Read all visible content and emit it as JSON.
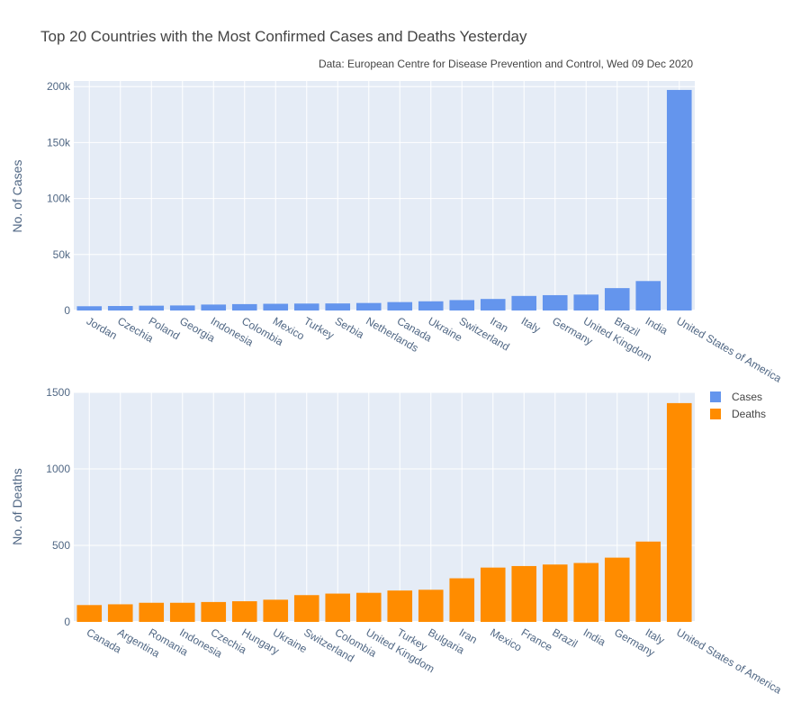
{
  "chart_data": [
    {
      "type": "bar",
      "title": "Top 20 Countries with the Most Confirmed Cases and Deaths Yesterday",
      "subtitle": "Data: European Centre for Disease Prevention and Control, Wed 09 Dec 2020",
      "ylabel": "No. of Cases",
      "ylim": [
        0,
        205000
      ],
      "yticks": [
        0,
        50000,
        100000,
        150000,
        200000
      ],
      "ytick_labels": [
        "0",
        "50k",
        "100k",
        "150k",
        "200k"
      ],
      "grid": true,
      "categories": [
        "Jordan",
        "Czechia",
        "Poland",
        "Georgia",
        "Indonesia",
        "Colombia",
        "Mexico",
        "Turkey",
        "Serbia",
        "Netherlands",
        "Canada",
        "Ukraine",
        "Switzerland",
        "Iran",
        "Italy",
        "Germany",
        "United Kingdom",
        "Brazil",
        "India",
        "United States of America"
      ],
      "series": [
        {
          "name": "Cases",
          "color": "#6495ED",
          "values": [
            3800,
            4000,
            4300,
            4500,
            5300,
            5700,
            6000,
            6200,
            6300,
            6700,
            7500,
            8200,
            9300,
            10300,
            13000,
            13700,
            14200,
            20000,
            26300,
            197000
          ]
        }
      ]
    },
    {
      "type": "bar",
      "ylabel": "No. of Deaths",
      "ylim": [
        0,
        1500
      ],
      "yticks": [
        0,
        500,
        1000,
        1500
      ],
      "ytick_labels": [
        "0",
        "500",
        "1000",
        "1500"
      ],
      "grid": true,
      "categories": [
        "Canada",
        "Argentina",
        "Romania",
        "Indonesia",
        "Czechia",
        "Hungary",
        "Ukraine",
        "Switzerland",
        "Colombia",
        "United Kingdom",
        "Turkey",
        "Bulgaria",
        "Iran",
        "Mexico",
        "France",
        "Brazil",
        "India",
        "Germany",
        "Italy",
        "United States of America"
      ],
      "series": [
        {
          "name": "Deaths",
          "color": "#FF8C00",
          "values": [
            110,
            115,
            125,
            125,
            130,
            135,
            145,
            175,
            185,
            190,
            205,
            210,
            285,
            355,
            365,
            375,
            385,
            420,
            525,
            1430
          ]
        }
      ]
    }
  ],
  "legend": {
    "placement": "right",
    "items": [
      {
        "label": "Cases",
        "color": "#6495ED"
      },
      {
        "label": "Deaths",
        "color": "#FF8C00"
      }
    ]
  },
  "colors": {
    "plot_background": "#E5ECF6",
    "grid": "#ffffff",
    "text": "#444444",
    "tick_text": "#506784"
  }
}
